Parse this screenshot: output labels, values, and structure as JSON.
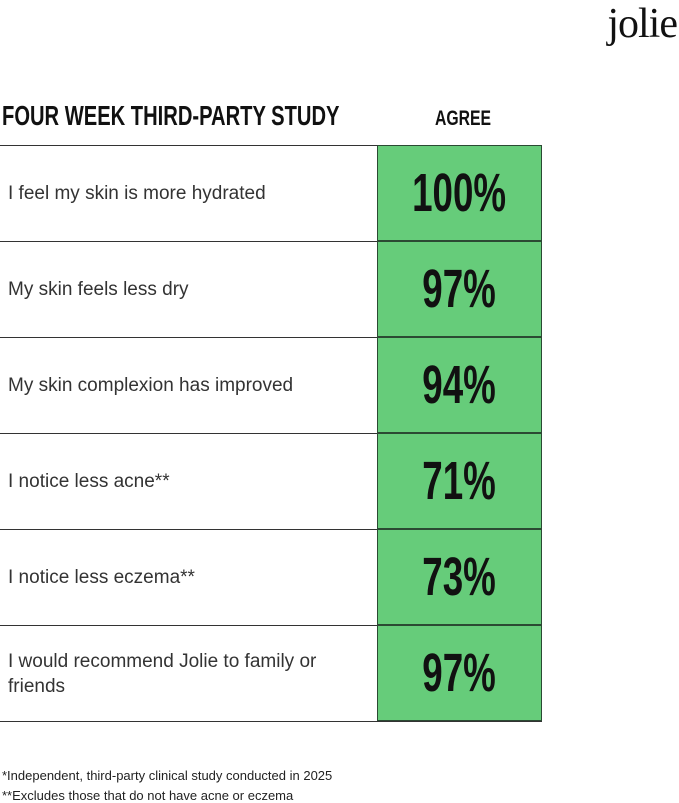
{
  "header": {
    "brand": "jolie",
    "title": "FOUR WEEK THIRD-PARTY STUDY",
    "column": "AGREE"
  },
  "table": {
    "rows": [
      [
        "I feel my skin is more hydrated",
        "100%"
      ],
      [
        "My skin feels less dry",
        "97%"
      ],
      [
        "My skin complexion has improved",
        "94%"
      ],
      [
        "I notice less acne**",
        "71%"
      ],
      [
        "I notice less eczema**",
        "73%"
      ],
      [
        "I would recommend Jolie to family or friends",
        "97%"
      ]
    ]
  },
  "footnotes": [
    "*Independent, third-party clinical study conducted in 2025",
    "**Excludes those that do not have acne or eczema"
  ]
}
